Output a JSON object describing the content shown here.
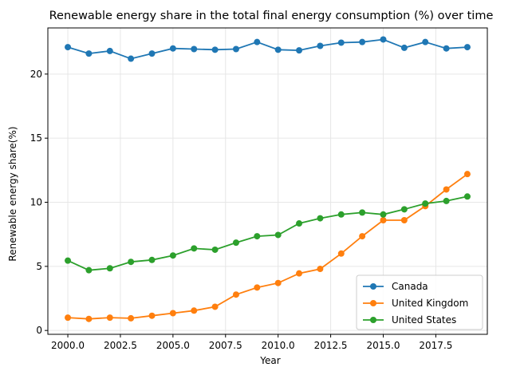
{
  "chart_data": {
    "type": "line",
    "title": "Renewable energy share in the total final energy consumption (%) over time",
    "xlabel": "Year",
    "ylabel": "Renewable energy share(%)",
    "xlim": [
      1999.05,
      2019.95
    ],
    "ylim": [
      -0.3,
      23.6
    ],
    "x_ticks": [
      2000.0,
      2002.5,
      2005.0,
      2007.5,
      2010.0,
      2012.5,
      2015.0,
      2017.5
    ],
    "x_tick_labels": [
      "2000.0",
      "2002.5",
      "2005.0",
      "2007.5",
      "2010.0",
      "2012.5",
      "2015.0",
      "2017.5"
    ],
    "y_ticks": [
      0,
      5,
      10,
      15,
      20
    ],
    "y_tick_labels": [
      "0",
      "5",
      "10",
      "15",
      "20"
    ],
    "grid": true,
    "legend_position": "bottom-right",
    "x": [
      2000,
      2001,
      2002,
      2003,
      2004,
      2005,
      2006,
      2007,
      2008,
      2009,
      2010,
      2011,
      2012,
      2013,
      2014,
      2015,
      2016,
      2017,
      2018,
      2019
    ],
    "series": [
      {
        "name": "Canada",
        "color": "#1f77b4",
        "values": [
          22.1,
          21.6,
          21.8,
          21.2,
          21.6,
          22.0,
          21.95,
          21.9,
          21.95,
          22.5,
          21.9,
          21.85,
          22.2,
          22.45,
          22.5,
          22.7,
          22.05,
          22.5,
          22.0,
          22.1
        ]
      },
      {
        "name": "United Kingdom",
        "color": "#ff7f0e",
        "values": [
          1.0,
          0.9,
          1.0,
          0.95,
          1.15,
          1.35,
          1.55,
          1.85,
          2.8,
          3.35,
          3.7,
          4.45,
          4.8,
          6.0,
          7.35,
          8.6,
          8.6,
          9.7,
          11.0,
          12.2
        ]
      },
      {
        "name": "United States",
        "color": "#2ca02c",
        "values": [
          5.45,
          4.7,
          4.85,
          5.35,
          5.5,
          5.85,
          6.4,
          6.3,
          6.85,
          7.35,
          7.45,
          8.35,
          8.75,
          9.05,
          9.2,
          9.05,
          9.45,
          9.9,
          10.1,
          10.45
        ]
      }
    ]
  }
}
